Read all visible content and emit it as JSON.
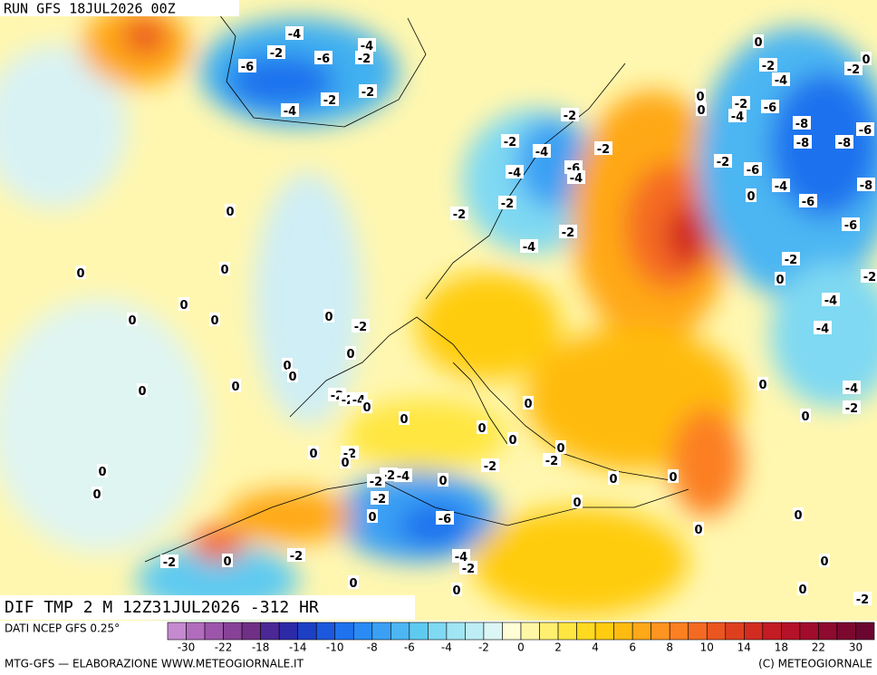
{
  "header": {
    "run": "RUN GFS 18JUL2026 00Z"
  },
  "map": {
    "field_label": "DIF TMP 2 M 12Z31JUL2026 -312 HR",
    "contour_labels": [
      -4,
      -4,
      -2,
      -6,
      -2,
      -6,
      -2,
      -2,
      -4,
      -2,
      0,
      -2,
      -2,
      0,
      0,
      -2,
      0,
      -4,
      -6,
      -4,
      -8,
      -8,
      -8,
      -6,
      -2,
      -4,
      -2,
      -6,
      -4,
      -4,
      -2,
      -6,
      -4,
      -8,
      0,
      -6,
      -2,
      -2,
      -2,
      -6,
      -4,
      0,
      0,
      0,
      -2,
      0,
      -4,
      -4,
      -2,
      0,
      0,
      0,
      0,
      -2,
      0,
      0,
      0,
      0,
      0,
      -2,
      -2,
      -4,
      0,
      0,
      0,
      0,
      -4,
      -2,
      0,
      0,
      0,
      0,
      -2,
      0,
      0,
      -2,
      -2,
      0,
      0,
      -2,
      -4,
      0,
      -2,
      0,
      0,
      -2,
      0,
      0,
      -6,
      0,
      0,
      -2,
      -2,
      0,
      -4,
      -2,
      0,
      0,
      0,
      0,
      -2
    ]
  },
  "footer": {
    "source": "DATI NCEP GFS 0.25°",
    "credit_left": "MTG-GFS — ELABORAZIONE WWW.METEOGIORNALE.IT",
    "credit_right": "(C) METEOGIORNALE"
  },
  "colorbar": {
    "colors": [
      "#c58ad0",
      "#b26cbe",
      "#9c55ab",
      "#874297",
      "#703085",
      "#4b2896",
      "#2d2aa8",
      "#1d3fc4",
      "#1c58de",
      "#1f72ee",
      "#2a8bf4",
      "#3aa0f4",
      "#4cb6f2",
      "#5fcaf0",
      "#7fd9f2",
      "#9fe5f4",
      "#bdeef5",
      "#dcf6f6",
      "#fffdd6",
      "#fff7a6",
      "#ffef70",
      "#ffe640",
      "#ffda20",
      "#ffcc10",
      "#ffbb10",
      "#ffa818",
      "#ff9420",
      "#fc7f22",
      "#f56a22",
      "#ea5520",
      "#de401e",
      "#d22c20",
      "#c41c24",
      "#b41228",
      "#a20c2c",
      "#8e0a2e",
      "#7c0830",
      "#6a0630"
    ],
    "labels": [
      -30,
      -22,
      -18,
      -14,
      -10,
      -8,
      -6,
      -4,
      -2,
      0,
      2,
      4,
      6,
      8,
      10,
      14,
      18,
      22,
      30
    ]
  }
}
